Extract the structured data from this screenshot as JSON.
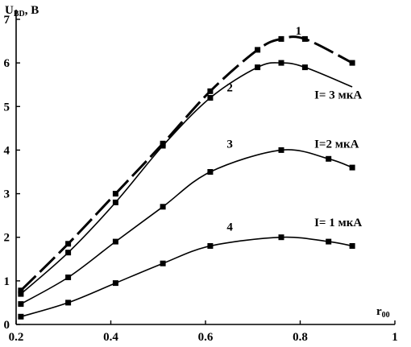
{
  "chart_data": {
    "type": "line",
    "ylabel_main": "U",
    "ylabel_sub": "BD",
    "ylabel_unit": ", В",
    "xlabel_main": "r",
    "xlabel_sub": "00",
    "xlim": [
      0.2,
      1.0
    ],
    "ylim": [
      0,
      7
    ],
    "x_ticks": [
      0.2,
      0.4,
      0.6,
      0.8,
      1.0
    ],
    "x_tick_labels": [
      "0.2",
      "0.4",
      "0.6",
      "0.8",
      "1"
    ],
    "y_ticks": [
      0,
      1,
      2,
      3,
      4,
      5,
      6,
      7
    ],
    "y_tick_labels": [
      "0",
      "1",
      "2",
      "3",
      "4",
      "5",
      "6",
      "7"
    ],
    "grid": false,
    "series": [
      {
        "name": "1",
        "style": "dashed",
        "x": [
          0.21,
          0.31,
          0.41,
          0.51,
          0.61,
          0.71,
          0.76,
          0.81,
          0.91
        ],
        "y": [
          0.78,
          1.85,
          3.0,
          4.15,
          5.35,
          6.3,
          6.55,
          6.55,
          6.0
        ]
      },
      {
        "name": "2",
        "style": "solid",
        "x": [
          0.21,
          0.31,
          0.41,
          0.51,
          0.61,
          0.71,
          0.76,
          0.81,
          0.91
        ],
        "y": [
          0.7,
          1.65,
          2.8,
          4.1,
          5.2,
          5.9,
          6.0,
          5.9,
          5.45
        ],
        "markers_count": 8
      },
      {
        "name": "3",
        "style": "solid",
        "x": [
          0.21,
          0.31,
          0.41,
          0.51,
          0.61,
          0.76,
          0.86,
          0.91
        ],
        "y": [
          0.47,
          1.08,
          1.9,
          2.7,
          3.5,
          4.0,
          3.8,
          3.6
        ]
      },
      {
        "name": "4",
        "style": "solid",
        "x": [
          0.21,
          0.31,
          0.41,
          0.51,
          0.61,
          0.76,
          0.86,
          0.91
        ],
        "y": [
          0.18,
          0.5,
          0.95,
          1.4,
          1.8,
          2.0,
          1.9,
          1.8
        ]
      }
    ],
    "annotations": [
      {
        "id": "label-1",
        "text": "1",
        "x": 0.79,
        "y": 6.65
      },
      {
        "id": "label-2",
        "text": "2",
        "x": 0.645,
        "y": 5.35
      },
      {
        "id": "label-3",
        "text": "3",
        "x": 0.645,
        "y": 4.05
      },
      {
        "id": "label-4",
        "text": "4",
        "x": 0.645,
        "y": 2.15
      },
      {
        "id": "current-3",
        "text": "I= 3 мкА",
        "x": 0.83,
        "y": 5.18
      },
      {
        "id": "current-2",
        "text": "I=2 мкА",
        "x": 0.83,
        "y": 4.05
      },
      {
        "id": "current-1",
        "text": "I= 1 мкА",
        "x": 0.83,
        "y": 2.25
      }
    ]
  }
}
